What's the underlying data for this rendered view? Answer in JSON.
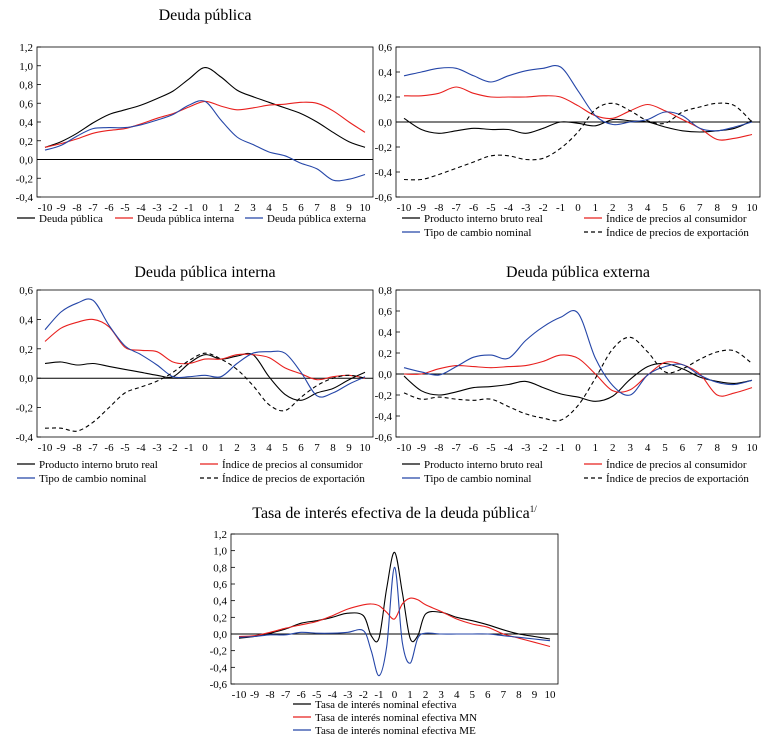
{
  "colors": {
    "black": "#000000",
    "red": "#e8201e",
    "blue": "#2546a8"
  },
  "chart_data": [
    {
      "id": "p1",
      "type": "line",
      "title": "Deuda pública",
      "x": [
        -10,
        -9,
        -8,
        -7,
        -6,
        -5,
        -4,
        -3,
        -2,
        -1,
        0,
        1,
        2,
        3,
        4,
        5,
        6,
        7,
        8,
        9,
        10
      ],
      "xticks": [
        "-10",
        "-9",
        "-8",
        "-7",
        "-6",
        "-5",
        "-4",
        "-3",
        "-2",
        "-1",
        "0",
        "1",
        "2",
        "3",
        "4",
        "5",
        "6",
        "7",
        "8",
        "9",
        "10"
      ],
      "ylim": [
        -0.4,
        1.2
      ],
      "yticks": [
        "-0,4",
        "-0,2",
        "0,0",
        "0,2",
        "0,4",
        "0,6",
        "0,8",
        "1,0",
        "1,2"
      ],
      "ytick_values": [
        -0.4,
        -0.2,
        0,
        0.2,
        0.4,
        0.6,
        0.8,
        1.0,
        1.2
      ],
      "zero_line": true,
      "legend_cols": 3,
      "series": [
        {
          "name": "Deuda pública",
          "color": "black",
          "dash": "solid",
          "values": [
            0.13,
            0.19,
            0.28,
            0.39,
            0.48,
            0.53,
            0.58,
            0.65,
            0.73,
            0.86,
            0.98,
            0.88,
            0.74,
            0.67,
            0.61,
            0.55,
            0.49,
            0.4,
            0.29,
            0.19,
            0.13
          ]
        },
        {
          "name": "Deuda pública interna",
          "color": "red",
          "dash": "solid",
          "values": [
            0.13,
            0.17,
            0.22,
            0.28,
            0.31,
            0.33,
            0.38,
            0.44,
            0.49,
            0.56,
            0.62,
            0.57,
            0.53,
            0.55,
            0.58,
            0.59,
            0.61,
            0.6,
            0.52,
            0.4,
            0.29
          ]
        },
        {
          "name": "Deuda pública externa",
          "color": "blue",
          "dash": "solid",
          "values": [
            0.1,
            0.15,
            0.25,
            0.33,
            0.34,
            0.34,
            0.37,
            0.42,
            0.48,
            0.58,
            0.62,
            0.42,
            0.24,
            0.16,
            0.08,
            0.04,
            -0.04,
            -0.1,
            -0.22,
            -0.21,
            -0.16
          ]
        }
      ]
    },
    {
      "id": "p2",
      "type": "line",
      "title": "",
      "x": [
        -10,
        -9,
        -8,
        -7,
        -6,
        -5,
        -4,
        -3,
        -2,
        -1,
        0,
        1,
        2,
        3,
        4,
        5,
        6,
        7,
        8,
        9,
        10
      ],
      "xticks": [
        "-10",
        "-9",
        "-8",
        "-7",
        "-6",
        "-5",
        "-4",
        "-3",
        "-2",
        "-1",
        "0",
        "1",
        "2",
        "3",
        "4",
        "5",
        "6",
        "7",
        "8",
        "9",
        "10"
      ],
      "ylim": [
        -0.6,
        0.6
      ],
      "yticks": [
        "-0,6",
        "-0,4",
        "-0,2",
        "0,0",
        "0,2",
        "0,4",
        "0,6"
      ],
      "ytick_values": [
        -0.6,
        -0.4,
        -0.2,
        0,
        0.2,
        0.4,
        0.6
      ],
      "zero_line": true,
      "legend_cols": 2,
      "series": [
        {
          "name": "Producto interno bruto real",
          "color": "black",
          "dash": "solid",
          "values": [
            0.03,
            -0.06,
            -0.09,
            -0.07,
            -0.05,
            -0.06,
            -0.06,
            -0.09,
            -0.05,
            0.0,
            -0.01,
            -0.03,
            0.02,
            0.01,
            0.0,
            -0.04,
            -0.07,
            -0.08,
            -0.07,
            -0.05,
            0.01
          ]
        },
        {
          "name": "Índice de precios al consumidor",
          "color": "red",
          "dash": "solid",
          "values": [
            0.21,
            0.21,
            0.23,
            0.28,
            0.23,
            0.2,
            0.2,
            0.2,
            0.21,
            0.2,
            0.13,
            0.05,
            0.03,
            0.09,
            0.14,
            0.09,
            0.02,
            -0.05,
            -0.14,
            -0.13,
            -0.1
          ]
        },
        {
          "name": "Tipo de cambio nominal",
          "color": "blue",
          "dash": "solid",
          "values": [
            0.37,
            0.4,
            0.43,
            0.43,
            0.37,
            0.32,
            0.37,
            0.41,
            0.43,
            0.44,
            0.25,
            0.05,
            -0.02,
            0.0,
            0.02,
            0.08,
            0.05,
            -0.05,
            -0.07,
            -0.04,
            0.0
          ]
        },
        {
          "name": "Índice de precios de exportación",
          "color": "black",
          "dash": "dashed",
          "values": [
            -0.46,
            -0.46,
            -0.42,
            -0.37,
            -0.32,
            -0.27,
            -0.27,
            -0.3,
            -0.29,
            -0.21,
            -0.08,
            0.1,
            0.15,
            0.09,
            0.01,
            -0.01,
            0.08,
            0.12,
            0.15,
            0.13,
            0.0
          ]
        }
      ]
    },
    {
      "id": "p3",
      "type": "line",
      "title": "Deuda pública interna",
      "x": [
        -10,
        -9,
        -8,
        -7,
        -6,
        -5,
        -4,
        -3,
        -2,
        -1,
        0,
        1,
        2,
        3,
        4,
        5,
        6,
        7,
        8,
        9,
        10
      ],
      "xticks": [
        "-10",
        "-9",
        "-8",
        "-7",
        "-6",
        "-5",
        "-4",
        "-3",
        "-2",
        "-1",
        "0",
        "1",
        "2",
        "3",
        "4",
        "5",
        "6",
        "7",
        "8",
        "9",
        "10"
      ],
      "ylim": [
        -0.4,
        0.6
      ],
      "yticks": [
        "-0,4",
        "-0,2",
        "0,0",
        "0,2",
        "0,4",
        "0,6"
      ],
      "ytick_values": [
        -0.4,
        -0.2,
        0,
        0.2,
        0.4,
        0.6
      ],
      "zero_line": true,
      "legend_cols": 2,
      "series": [
        {
          "name": "Producto interno bruto real",
          "color": "black",
          "dash": "solid",
          "values": [
            0.1,
            0.11,
            0.09,
            0.1,
            0.08,
            0.06,
            0.04,
            0.02,
            0.01,
            0.1,
            0.16,
            0.13,
            0.15,
            0.16,
            0.01,
            -0.11,
            -0.15,
            -0.1,
            -0.07,
            -0.01,
            0.04
          ]
        },
        {
          "name": "Índice de precios al consumidor",
          "color": "red",
          "dash": "solid",
          "values": [
            0.25,
            0.34,
            0.38,
            0.4,
            0.35,
            0.21,
            0.19,
            0.18,
            0.11,
            0.1,
            0.13,
            0.13,
            0.16,
            0.16,
            0.14,
            0.07,
            0.03,
            -0.01,
            0.01,
            0.02,
            0.0
          ]
        },
        {
          "name": "Tipo de cambio nominal",
          "color": "blue",
          "dash": "solid",
          "values": [
            0.33,
            0.45,
            0.51,
            0.53,
            0.36,
            0.22,
            0.16,
            0.09,
            0.01,
            0.01,
            0.02,
            0.01,
            0.1,
            0.17,
            0.18,
            0.17,
            0.04,
            -0.12,
            -0.1,
            -0.04,
            0.01
          ]
        },
        {
          "name": "Índice de precios de exportación",
          "color": "black",
          "dash": "dashed",
          "values": [
            -0.34,
            -0.34,
            -0.36,
            -0.3,
            -0.2,
            -0.1,
            -0.06,
            -0.02,
            0.04,
            0.12,
            0.17,
            0.13,
            0.06,
            -0.05,
            -0.18,
            -0.22,
            -0.13,
            -0.05,
            0.0,
            0.02,
            0.0
          ]
        }
      ]
    },
    {
      "id": "p4",
      "type": "line",
      "title": "Deuda pública externa",
      "x": [
        -10,
        -9,
        -8,
        -7,
        -6,
        -5,
        -4,
        -3,
        -2,
        -1,
        0,
        1,
        2,
        3,
        4,
        5,
        6,
        7,
        8,
        9,
        10
      ],
      "xticks": [
        "-10",
        "-9",
        "-8",
        "-7",
        "-6",
        "-5",
        "-4",
        "-3",
        "-2",
        "-1",
        "0",
        "1",
        "2",
        "3",
        "4",
        "5",
        "6",
        "7",
        "8",
        "9",
        "10"
      ],
      "ylim": [
        -0.6,
        0.8
      ],
      "yticks": [
        "-0,6",
        "-0,4",
        "-0,2",
        "0,0",
        "0,2",
        "0,4",
        "0,6",
        "0,8"
      ],
      "ytick_values": [
        -0.6,
        -0.4,
        -0.2,
        0,
        0.2,
        0.4,
        0.6,
        0.8
      ],
      "zero_line": true,
      "legend_cols": 2,
      "series": [
        {
          "name": "Producto interno bruto real",
          "color": "black",
          "dash": "solid",
          "values": [
            -0.02,
            -0.16,
            -0.2,
            -0.17,
            -0.13,
            -0.12,
            -0.1,
            -0.07,
            -0.13,
            -0.19,
            -0.22,
            -0.26,
            -0.21,
            -0.05,
            0.07,
            0.1,
            0.05,
            -0.03,
            -0.07,
            -0.09,
            -0.06
          ]
        },
        {
          "name": "Índice de precios al consumidor",
          "color": "red",
          "dash": "solid",
          "values": [
            0.0,
            0.0,
            0.05,
            0.08,
            0.07,
            0.06,
            0.07,
            0.08,
            0.12,
            0.18,
            0.15,
            0.0,
            -0.16,
            -0.15,
            -0.01,
            0.11,
            0.09,
            0.0,
            -0.2,
            -0.18,
            -0.13
          ]
        },
        {
          "name": "Tipo de cambio nominal",
          "color": "blue",
          "dash": "solid",
          "values": [
            0.06,
            0.02,
            -0.01,
            0.07,
            0.16,
            0.18,
            0.15,
            0.32,
            0.45,
            0.54,
            0.58,
            0.15,
            -0.11,
            -0.2,
            -0.01,
            0.07,
            0.09,
            -0.01,
            -0.08,
            -0.1,
            -0.06
          ]
        },
        {
          "name": "Índice de precios de exportación",
          "color": "black",
          "dash": "dashed",
          "values": [
            -0.18,
            -0.24,
            -0.22,
            -0.24,
            -0.25,
            -0.24,
            -0.31,
            -0.38,
            -0.42,
            -0.44,
            -0.3,
            -0.04,
            0.24,
            0.35,
            0.21,
            0.02,
            0.05,
            0.14,
            0.21,
            0.22,
            0.1
          ]
        }
      ]
    },
    {
      "id": "p5",
      "type": "line",
      "title": "Tasa de interés efectiva de la deuda pública",
      "title_superscript": "1/",
      "x": [
        -10,
        -9,
        -8,
        -7,
        -6,
        -5,
        -4,
        -3,
        -2,
        -1.5,
        -1,
        -0.5,
        0,
        0.5,
        1,
        1.5,
        2,
        3,
        4,
        5,
        6,
        7,
        8,
        9,
        10
      ],
      "xticks": [
        "-10",
        "-9",
        "-8",
        "-7",
        "-6",
        "-5",
        "-4",
        "-3",
        "-2",
        "-1",
        "0",
        "1",
        "2",
        "3",
        "4",
        "5",
        "6",
        "7",
        "8",
        "9",
        "10"
      ],
      "xtick_values": [
        -10,
        -9,
        -8,
        -7,
        -6,
        -5,
        -4,
        -3,
        -2,
        -1,
        0,
        1,
        2,
        3,
        4,
        5,
        6,
        7,
        8,
        9,
        10
      ],
      "ylim": [
        -0.6,
        1.2
      ],
      "yticks": [
        "-0,6",
        "-0,4",
        "-0,2",
        "0,0",
        "0,2",
        "0,4",
        "0,6",
        "0,8",
        "1,0",
        "1,2"
      ],
      "ytick_values": [
        -0.6,
        -0.4,
        -0.2,
        0,
        0.2,
        0.4,
        0.6,
        0.8,
        1.0,
        1.2
      ],
      "zero_line": true,
      "legend_cols": 1,
      "series": [
        {
          "name": "Tasa de interés nominal efectiva",
          "color": "black",
          "dash": "solid",
          "values": [
            -0.05,
            -0.03,
            0.01,
            0.06,
            0.13,
            0.16,
            0.2,
            0.25,
            0.22,
            -0.02,
            -0.05,
            0.55,
            0.98,
            0.5,
            -0.05,
            -0.02,
            0.24,
            0.26,
            0.2,
            0.16,
            0.11,
            0.05,
            0.0,
            -0.03,
            -0.06
          ]
        },
        {
          "name": "Tasa de interés nominal efectiva MN",
          "color": "red",
          "dash": "solid",
          "values": [
            -0.03,
            -0.02,
            0.02,
            0.07,
            0.11,
            0.15,
            0.22,
            0.3,
            0.35,
            0.36,
            0.34,
            0.26,
            0.18,
            0.36,
            0.43,
            0.41,
            0.35,
            0.27,
            0.18,
            0.12,
            0.08,
            0.0,
            -0.05,
            -0.1,
            -0.15
          ]
        },
        {
          "name": "Tasa de interés nominal efectiva ME",
          "color": "blue",
          "dash": "solid",
          "values": [
            -0.04,
            -0.03,
            -0.01,
            -0.01,
            0.02,
            0.01,
            0.01,
            0.02,
            0.04,
            -0.2,
            -0.5,
            -0.15,
            0.8,
            -0.1,
            -0.35,
            -0.05,
            0.01,
            0.0,
            0.0,
            0.0,
            0.0,
            -0.02,
            -0.04,
            -0.06,
            -0.08
          ]
        }
      ]
    }
  ]
}
